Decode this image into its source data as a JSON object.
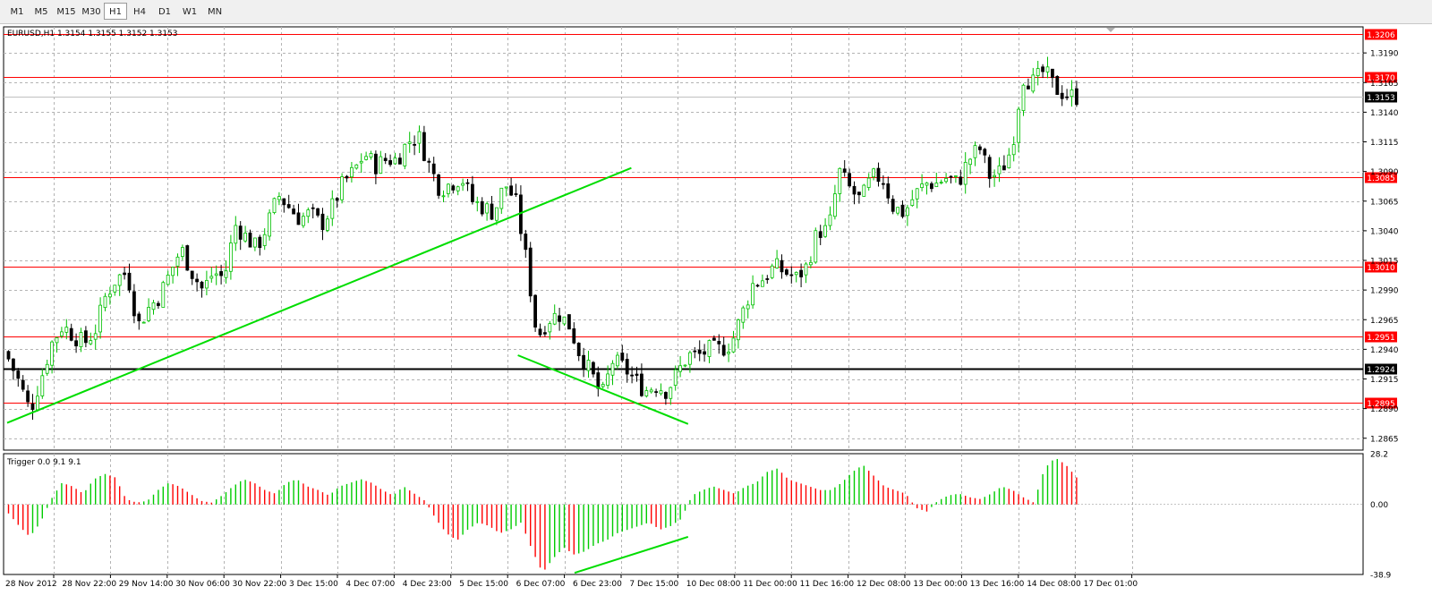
{
  "toolbar": {
    "timeframes": [
      "M1",
      "M5",
      "M15",
      "M30",
      "H1",
      "H4",
      "D1",
      "W1",
      "MN"
    ],
    "active": "H1"
  },
  "colors": {
    "bull": "#00c000",
    "bear": "#000000",
    "level": "#ff0000",
    "trend": "#00dd00",
    "osc_pos": "#ff0000",
    "osc_neg": "#00cc00",
    "grid": "#b4b4b4"
  },
  "chart_data": [
    {
      "type": "candlestick",
      "title": "EURUSD,H1  1.3154 1.3155 1.3152 1.3153",
      "ylim": [
        1.2855,
        1.3212
      ],
      "y_ticks": [
        "1.3190",
        "1.3165",
        "1.3140",
        "1.3115",
        "1.3090",
        "1.3065",
        "1.3040",
        "1.3015",
        "1.2990",
        "1.2965",
        "1.2940",
        "1.2915",
        "1.2890",
        "1.2865"
      ],
      "grid": true,
      "current_price": "1.3153",
      "levels": [
        {
          "value": "1.3206",
          "color": "#ff0000"
        },
        {
          "value": "1.3170",
          "color": "#ff0000"
        },
        {
          "value": "1.3085",
          "color": "#ff0000"
        },
        {
          "value": "1.3010",
          "color": "#ff0000"
        },
        {
          "value": "1.2951",
          "color": "#ff0000"
        },
        {
          "value": "1.2924",
          "color": "#000000"
        },
        {
          "value": "1.2895",
          "color": "#ff0000"
        }
      ],
      "trend_lines": [
        {
          "from": [
            "28 Nov 2012",
            1.2878
          ],
          "to": [
            "7 Dec 15:00",
            1.3093
          ]
        },
        {
          "from": [
            "6 Dec 07:00",
            1.2935
          ],
          "to": [
            "10 Dec 08:00",
            1.2877
          ]
        }
      ],
      "path_closes": [
        1.2932,
        1.2912,
        1.2888,
        1.2915,
        1.2945,
        1.296,
        1.2952,
        1.2945,
        1.2955,
        1.2985,
        1.3,
        1.3005,
        1.296,
        1.2975,
        1.2985,
        1.3005,
        1.3025,
        1.3005,
        1.299,
        1.3005,
        1.3,
        1.3045,
        1.3035,
        1.3025,
        1.3045,
        1.307,
        1.306,
        1.305,
        1.3055,
        1.3045,
        1.306,
        1.308,
        1.309,
        1.3105,
        1.3095,
        1.31,
        1.31,
        1.3115,
        1.312,
        1.3095,
        1.3075,
        1.308,
        1.3085,
        1.3065,
        1.306,
        1.3055,
        1.308,
        1.3065,
        1.3015,
        1.295,
        1.2965,
        1.297,
        1.296,
        1.2935,
        1.292,
        1.29,
        1.293,
        1.2925,
        1.2915,
        1.2905,
        1.291,
        1.2905,
        1.292,
        1.2935,
        1.2935,
        1.294,
        1.294,
        1.2945,
        1.297,
        1.2995,
        1.3,
        1.301,
        1.3005,
        1.3,
        1.301,
        1.304,
        1.304,
        1.309,
        1.3075,
        1.3065,
        1.3085,
        1.3085,
        1.306,
        1.3055,
        1.307,
        1.308,
        1.308,
        1.3085,
        1.308,
        1.31,
        1.311,
        1.3085,
        1.309,
        1.311,
        1.317,
        1.3165,
        1.3175,
        1.316,
        1.3155,
        1.3153
      ]
    },
    {
      "type": "bar",
      "title": "Trigger 0.0 9.1 9.1",
      "ylim": [
        -38.9,
        28.2
      ],
      "y_ticks": [
        "28.2",
        "0.00",
        "-38.9"
      ],
      "trend_lines": [
        {
          "from": [
            "6 Dec 23:00",
            -38.0
          ],
          "to": [
            "10 Dec 08:00",
            -18.0
          ]
        }
      ],
      "values_path": [
        -5,
        -12,
        -18,
        -10,
        3,
        12,
        10,
        6,
        14,
        17,
        15,
        3,
        1,
        2,
        8,
        12,
        10,
        6,
        2,
        1,
        5,
        10,
        14,
        12,
        8,
        6,
        12,
        14,
        10,
        8,
        5,
        10,
        12,
        14,
        12,
        8,
        5,
        10,
        6,
        2,
        -8,
        -16,
        -20,
        -14,
        -10,
        -12,
        -16,
        -14,
        -10,
        -25,
        -38,
        -30,
        -24,
        -28,
        -26,
        -22,
        -20,
        -16,
        -14,
        -12,
        -10,
        -14,
        -12,
        -8,
        5,
        8,
        10,
        8,
        6,
        10,
        12,
        18,
        20,
        14,
        12,
        10,
        8,
        8,
        12,
        18,
        22,
        16,
        10,
        8,
        6,
        -2,
        -4,
        2,
        5,
        6,
        4,
        3,
        6,
        10,
        8,
        4,
        1,
        20,
        26,
        22,
        15
      ]
    }
  ],
  "x_labels": [
    "28 Nov 2012",
    "28 Nov 22:00",
    "29 Nov 14:00",
    "30 Nov 06:00",
    "30 Nov 22:00",
    "3 Dec 15:00",
    "4 Dec 07:00",
    "4 Dec 23:00",
    "5 Dec 15:00",
    "6 Dec 07:00",
    "6 Dec 23:00",
    "7 Dec 15:00",
    "10 Dec 08:00",
    "11 Dec 00:00",
    "11 Dec 16:00",
    "12 Dec 08:00",
    "13 Dec 00:00",
    "13 Dec 16:00",
    "14 Dec 08:00",
    "17 Dec 01:00"
  ]
}
